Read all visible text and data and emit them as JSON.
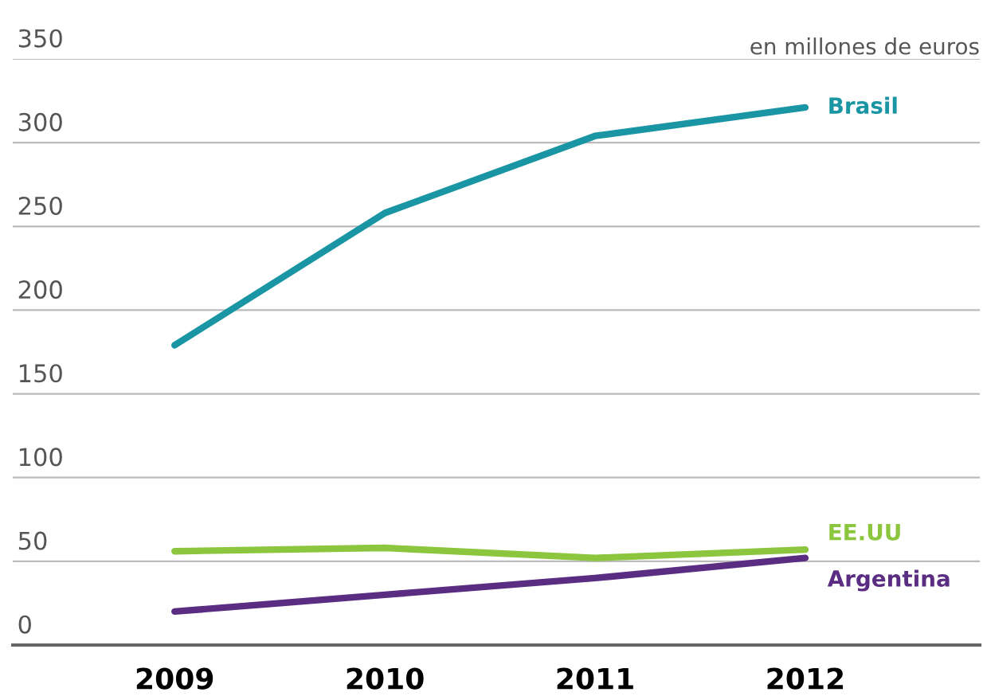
{
  "chart_data": {
    "type": "line",
    "ylabel": "en millones de euros",
    "categories": [
      "2009",
      "2010",
      "2011",
      "2012"
    ],
    "series": [
      {
        "name": "Brasil",
        "color": "#1995a3",
        "values": [
          179,
          258,
          304,
          321
        ]
      },
      {
        "name": "EE.UU",
        "color": "#8cc63e",
        "values": [
          56,
          58,
          52,
          57
        ]
      },
      {
        "name": "Argentina",
        "color": "#5a2d82",
        "values": [
          20,
          30,
          40,
          52
        ]
      }
    ],
    "ylim": [
      0,
      350
    ],
    "yticks": [
      0,
      50,
      100,
      150,
      200,
      250,
      300,
      350
    ],
    "grid": "y",
    "legend": "right",
    "line_style": "solid"
  }
}
